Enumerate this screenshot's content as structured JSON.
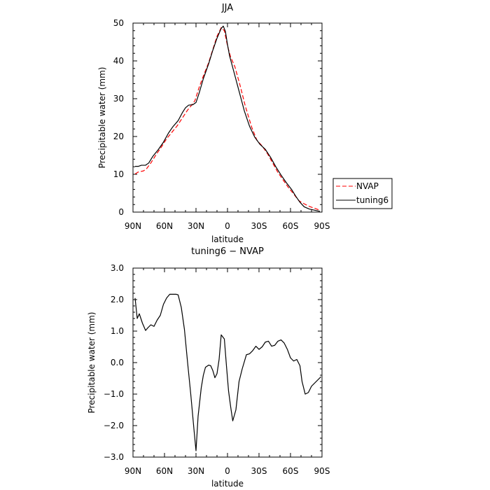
{
  "chart_data": [
    {
      "type": "line",
      "title": "JJA",
      "xlabel": "latitude",
      "ylabel": "Precipitable water (mm)",
      "xlim": [
        90,
        -90
      ],
      "ylim": [
        0,
        50
      ],
      "x_ticks": [
        90,
        60,
        30,
        0,
        -30,
        -60,
        -90
      ],
      "x_tick_labels": [
        "90N",
        "60N",
        "30N",
        "0",
        "30S",
        "60S",
        "90S"
      ],
      "y_ticks": [
        0,
        10,
        20,
        30,
        40,
        50
      ],
      "y_tick_labels": [
        "0",
        "10",
        "20",
        "30",
        "40",
        "50"
      ],
      "legend": {
        "placement": "outside-right"
      },
      "series": [
        {
          "name": "NVAP",
          "color": "#ff0000",
          "dash": "dashed",
          "points": [
            [
              88,
              10.1
            ],
            [
              85,
              10.6
            ],
            [
              80,
              10.9
            ],
            [
              77,
              11.5
            ],
            [
              73,
              13.0
            ],
            [
              68,
              15.2
            ],
            [
              63,
              17.2
            ],
            [
              58,
              19.4
            ],
            [
              53,
              21.1
            ],
            [
              48,
              22.8
            ],
            [
              43,
              24.9
            ],
            [
              38,
              27.0
            ],
            [
              35,
              28.0
            ],
            [
              31,
              29.5
            ],
            [
              27,
              33.0
            ],
            [
              23,
              36.0
            ],
            [
              18,
              39.5
            ],
            [
              14,
              43.0
            ],
            [
              10,
              46.5
            ],
            [
              6,
              48.8
            ],
            [
              3,
              48.0
            ],
            [
              0,
              44.0
            ],
            [
              -3,
              41.0
            ],
            [
              -7,
              38.5
            ],
            [
              -12,
              33.5
            ],
            [
              -17,
              28.0
            ],
            [
              -23,
              22.5
            ],
            [
              -28,
              19.0
            ],
            [
              -33,
              17.5
            ],
            [
              -38,
              15.5
            ],
            [
              -43,
              13.0
            ],
            [
              -48,
              10.5
            ],
            [
              -53,
              8.5
            ],
            [
              -58,
              6.5
            ],
            [
              -63,
              4.8
            ],
            [
              -68,
              3.0
            ],
            [
              -73,
              2.2
            ],
            [
              -78,
              1.5
            ],
            [
              -83,
              1.0
            ],
            [
              -88,
              0.5
            ]
          ]
        },
        {
          "name": "tuning6",
          "color": "#000000",
          "dash": "solid",
          "points": [
            [
              88,
              12.1
            ],
            [
              85,
              12.1
            ],
            [
              82,
              12.4
            ],
            [
              78,
              12.4
            ],
            [
              75,
              13.0
            ],
            [
              71,
              14.8
            ],
            [
              66,
              16.5
            ],
            [
              61,
              18.5
            ],
            [
              56,
              21.0
            ],
            [
              52,
              22.6
            ],
            [
              47,
              24.2
            ],
            [
              43,
              26.3
            ],
            [
              40,
              27.6
            ],
            [
              37,
              28.3
            ],
            [
              33,
              28.4
            ],
            [
              30,
              29.0
            ],
            [
              27,
              31.5
            ],
            [
              23,
              35.3
            ],
            [
              18,
              39.2
            ],
            [
              14,
              42.8
            ],
            [
              10,
              46.0
            ],
            [
              6,
              48.6
            ],
            [
              4,
              49.2
            ],
            [
              2,
              47.8
            ],
            [
              0,
              44.3
            ],
            [
              -2,
              41.3
            ],
            [
              -6,
              37.2
            ],
            [
              -11,
              32.0
            ],
            [
              -16,
              26.8
            ],
            [
              -21,
              22.7
            ],
            [
              -26,
              19.8
            ],
            [
              -31,
              17.9
            ],
            [
              -36,
              16.6
            ],
            [
              -41,
              14.5
            ],
            [
              -46,
              12.0
            ],
            [
              -51,
              9.8
            ],
            [
              -56,
              7.8
            ],
            [
              -61,
              6.0
            ],
            [
              -65,
              4.2
            ],
            [
              -69,
              2.6
            ],
            [
              -73,
              1.4
            ],
            [
              -78,
              0.8
            ],
            [
              -83,
              0.5
            ],
            [
              -88,
              0.2
            ]
          ]
        }
      ]
    },
    {
      "type": "line",
      "title": "tuning6 − NVAP",
      "xlabel": "latitude",
      "ylabel": "Precipitable water (mm)",
      "xlim": [
        90,
        -90
      ],
      "ylim": [
        -3,
        3
      ],
      "x_ticks": [
        90,
        60,
        30,
        0,
        -30,
        -60,
        -90
      ],
      "x_tick_labels": [
        "90N",
        "60N",
        "30N",
        "0",
        "30S",
        "60S",
        "90S"
      ],
      "y_ticks": [
        3,
        2,
        1,
        0,
        -1,
        -2,
        -3
      ],
      "y_tick_labels": [
        "3.0",
        "2.0",
        "1.0",
        "0.0",
        "−1.0",
        "−2.0",
        "−3.0"
      ],
      "series": [
        {
          "color": "#000000",
          "dash": "solid",
          "points": [
            [
              88,
              2.05
            ],
            [
              86,
              1.4
            ],
            [
              84,
              1.55
            ],
            [
              81,
              1.25
            ],
            [
              78,
              1.02
            ],
            [
              76,
              1.1
            ],
            [
              73,
              1.2
            ],
            [
              70,
              1.15
            ],
            [
              67,
              1.35
            ],
            [
              64,
              1.5
            ],
            [
              61,
              1.85
            ],
            [
              58,
              2.05
            ],
            [
              55,
              2.17
            ],
            [
              52,
              2.17
            ],
            [
              49,
              2.17
            ],
            [
              47,
              2.15
            ],
            [
              44,
              1.75
            ],
            [
              41,
              1.05
            ],
            [
              38,
              0.0
            ],
            [
              35,
              -1.0
            ],
            [
              32,
              -2.1
            ],
            [
              30,
              -2.8
            ],
            [
              28,
              -1.7
            ],
            [
              25,
              -0.8
            ],
            [
              23,
              -0.4
            ],
            [
              21,
              -0.15
            ],
            [
              18,
              -0.08
            ],
            [
              16,
              -0.1
            ],
            [
              14,
              -0.25
            ],
            [
              12,
              -0.48
            ],
            [
              10,
              -0.35
            ],
            [
              8,
              0.1
            ],
            [
              6,
              0.88
            ],
            [
              3,
              0.75
            ],
            [
              1,
              -0.1
            ],
            [
              -1,
              -0.9
            ],
            [
              -3,
              -1.4
            ],
            [
              -5,
              -1.85
            ],
            [
              -8,
              -1.5
            ],
            [
              -11,
              -0.6
            ],
            [
              -14,
              -0.2
            ],
            [
              -18,
              0.25
            ],
            [
              -21,
              0.28
            ],
            [
              -24,
              0.38
            ],
            [
              -27,
              0.52
            ],
            [
              -30,
              0.42
            ],
            [
              -33,
              0.5
            ],
            [
              -36,
              0.65
            ],
            [
              -39,
              0.68
            ],
            [
              -42,
              0.52
            ],
            [
              -45,
              0.55
            ],
            [
              -48,
              0.68
            ],
            [
              -51,
              0.72
            ],
            [
              -54,
              0.62
            ],
            [
              -57,
              0.42
            ],
            [
              -60,
              0.15
            ],
            [
              -63,
              0.05
            ],
            [
              -66,
              0.1
            ],
            [
              -69,
              -0.1
            ],
            [
              -71,
              -0.6
            ],
            [
              -74,
              -1.0
            ],
            [
              -77,
              -0.95
            ],
            [
              -80,
              -0.75
            ],
            [
              -83,
              -0.65
            ],
            [
              -86,
              -0.55
            ],
            [
              -89,
              -0.45
            ]
          ]
        }
      ]
    }
  ]
}
